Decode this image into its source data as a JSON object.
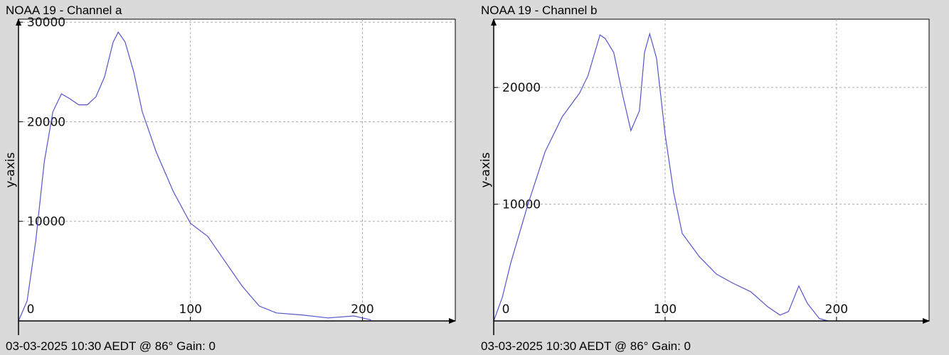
{
  "chart_data": [
    {
      "type": "line",
      "title": "NOAA 19 - Channel a",
      "ylabel": "y-axis",
      "footer": "03-03-2025 10:30 AEDT @ 86° Gain: 0",
      "xlim": [
        0,
        254
      ],
      "ylim": [
        0,
        30300
      ],
      "xticks": [
        0,
        100,
        200
      ],
      "yticks": [
        10000,
        20000,
        30000
      ],
      "grid": true,
      "series": [
        {
          "color": "#5555cc",
          "x": [
            0,
            5,
            10,
            15,
            20,
            25,
            30,
            35,
            40,
            45,
            50,
            55,
            58,
            62,
            67,
            72,
            80,
            90,
            100,
            110,
            120,
            130,
            140,
            150,
            165,
            180,
            195,
            205
          ],
          "values": [
            0,
            2000,
            8000,
            16000,
            21000,
            22800,
            22300,
            21700,
            21700,
            22500,
            24500,
            28000,
            29000,
            28000,
            25000,
            21000,
            17000,
            13000,
            9800,
            8500,
            6000,
            3500,
            1500,
            800,
            600,
            300,
            500,
            100
          ]
        }
      ]
    },
    {
      "type": "line",
      "title": "NOAA 19 - Channel b",
      "ylabel": "y-axis",
      "footer": "03-03-2025 10:30 AEDT @ 86° Gain: 0",
      "xlim": [
        0,
        254
      ],
      "ylim": [
        0,
        25850
      ],
      "xticks": [
        0,
        100,
        200
      ],
      "yticks": [
        10000,
        20000
      ],
      "grid": true,
      "series": [
        {
          "color": "#5555cc",
          "x": [
            0,
            5,
            10,
            20,
            30,
            40,
            50,
            55,
            62,
            65,
            70,
            75,
            80,
            85,
            88,
            91,
            95,
            100,
            105,
            110,
            120,
            130,
            140,
            150,
            160,
            167,
            172,
            178,
            183,
            190,
            195
          ],
          "values": [
            0,
            2000,
            5000,
            10000,
            14500,
            17500,
            19500,
            21000,
            24500,
            24200,
            23000,
            19500,
            16300,
            18000,
            23000,
            24600,
            22500,
            16000,
            11000,
            7500,
            5500,
            4000,
            3200,
            2500,
            1200,
            500,
            800,
            3000,
            1500,
            200,
            0
          ]
        }
      ]
    }
  ]
}
